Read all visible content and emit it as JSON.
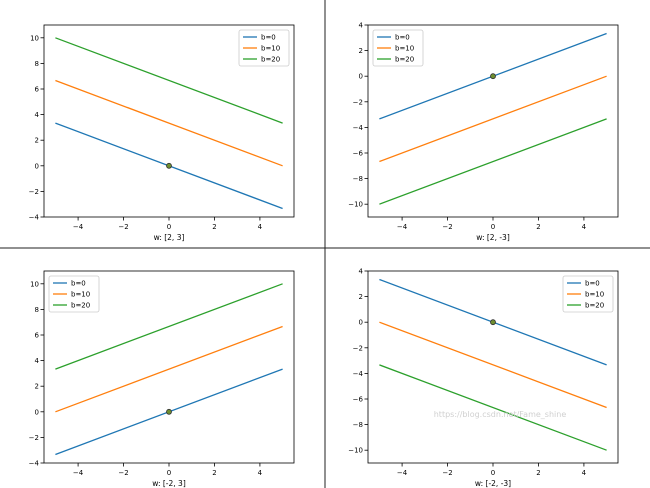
{
  "figure": {
    "watermark": "https://blog.csdn.net/Fame_shine"
  },
  "chart_data": [
    {
      "type": "line",
      "xlabel": "w: [2, 3]",
      "xlim": [
        -5.5,
        5.5
      ],
      "ylim": [
        -4,
        11
      ],
      "xticks": [
        -4,
        -2,
        0,
        2,
        4
      ],
      "yticks": [
        -4,
        -2,
        0,
        2,
        4,
        6,
        8,
        10
      ],
      "legend_position": "top-right",
      "marker": {
        "x": 0,
        "y": 0
      },
      "series": [
        {
          "name": "b=0",
          "color": "#1f77b4",
          "x": [
            -5,
            5
          ],
          "y": [
            3.333,
            -3.333
          ]
        },
        {
          "name": "b=10",
          "color": "#ff7f0e",
          "x": [
            -5,
            5
          ],
          "y": [
            6.667,
            0
          ]
        },
        {
          "name": "b=20",
          "color": "#2ca02c",
          "x": [
            -5,
            5
          ],
          "y": [
            10,
            3.333
          ]
        }
      ]
    },
    {
      "type": "line",
      "xlabel": "w: [2, -3]",
      "xlim": [
        -5.5,
        5.5
      ],
      "ylim": [
        -11,
        4
      ],
      "xticks": [
        -4,
        -2,
        0,
        2,
        4
      ],
      "yticks": [
        -10,
        -8,
        -6,
        -4,
        -2,
        0,
        2,
        4
      ],
      "legend_position": "top-left",
      "marker": {
        "x": 0,
        "y": 0
      },
      "series": [
        {
          "name": "b=0",
          "color": "#1f77b4",
          "x": [
            -5,
            5
          ],
          "y": [
            -3.333,
            3.333
          ]
        },
        {
          "name": "b=10",
          "color": "#ff7f0e",
          "x": [
            -5,
            5
          ],
          "y": [
            -6.667,
            0
          ]
        },
        {
          "name": "b=20",
          "color": "#2ca02c",
          "x": [
            -5,
            5
          ],
          "y": [
            -10,
            -3.333
          ]
        }
      ]
    },
    {
      "type": "line",
      "xlabel": "w: [-2, 3]",
      "xlim": [
        -5.5,
        5.5
      ],
      "ylim": [
        -4,
        11
      ],
      "xticks": [
        -4,
        -2,
        0,
        2,
        4
      ],
      "yticks": [
        -4,
        -2,
        0,
        2,
        4,
        6,
        8,
        10
      ],
      "legend_position": "top-left",
      "marker": {
        "x": 0,
        "y": 0
      },
      "series": [
        {
          "name": "b=0",
          "color": "#1f77b4",
          "x": [
            -5,
            5
          ],
          "y": [
            -3.333,
            3.333
          ]
        },
        {
          "name": "b=10",
          "color": "#ff7f0e",
          "x": [
            -5,
            5
          ],
          "y": [
            0,
            6.667
          ]
        },
        {
          "name": "b=20",
          "color": "#2ca02c",
          "x": [
            -5,
            5
          ],
          "y": [
            3.333,
            10
          ]
        }
      ]
    },
    {
      "type": "line",
      "xlabel": "w: [-2, -3]",
      "xlim": [
        -5.5,
        5.5
      ],
      "ylim": [
        -11,
        4
      ],
      "xticks": [
        -4,
        -2,
        0,
        2,
        4
      ],
      "yticks": [
        -10,
        -8,
        -6,
        -4,
        -2,
        0,
        2,
        4
      ],
      "legend_position": "top-right",
      "marker": {
        "x": 0,
        "y": 0
      },
      "series": [
        {
          "name": "b=0",
          "color": "#1f77b4",
          "x": [
            -5,
            5
          ],
          "y": [
            3.333,
            -3.333
          ]
        },
        {
          "name": "b=10",
          "color": "#ff7f0e",
          "x": [
            -5,
            5
          ],
          "y": [
            0,
            -6.667
          ]
        },
        {
          "name": "b=20",
          "color": "#2ca02c",
          "x": [
            -5,
            5
          ],
          "y": [
            -3.333,
            -10
          ]
        }
      ]
    }
  ]
}
